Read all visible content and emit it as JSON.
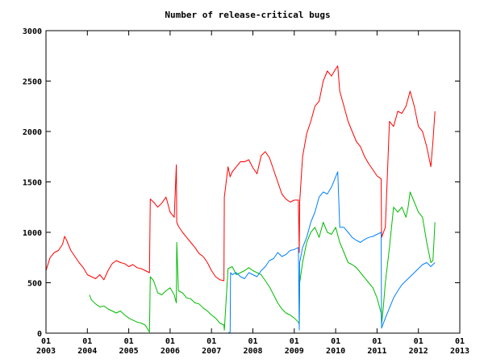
{
  "chart_data": {
    "type": "line",
    "title": "Number of release-critical bugs",
    "xlabel": "",
    "ylabel": "",
    "xlim": [
      2003.0,
      2013.0
    ],
    "ylim": [
      0,
      3000
    ],
    "grid": false,
    "legend": "none",
    "y_ticks": [
      {
        "value": 0,
        "label": "0"
      },
      {
        "value": 500,
        "label": "500"
      },
      {
        "value": 1000,
        "label": "1000"
      },
      {
        "value": 1500,
        "label": "1500"
      },
      {
        "value": 2000,
        "label": "2000"
      },
      {
        "value": 2500,
        "label": "2500"
      },
      {
        "value": 3000,
        "label": "3000"
      }
    ],
    "x_ticks": [
      {
        "value": 2003,
        "line1": "01",
        "line2": "2003"
      },
      {
        "value": 2004,
        "line1": "01",
        "line2": "2004"
      },
      {
        "value": 2005,
        "line1": "01",
        "line2": "2005"
      },
      {
        "value": 2006,
        "line1": "01",
        "line2": "2006"
      },
      {
        "value": 2007,
        "line1": "01",
        "line2": "2007"
      },
      {
        "value": 2008,
        "line1": "01",
        "line2": "2008"
      },
      {
        "value": 2009,
        "line1": "01",
        "line2": "2009"
      },
      {
        "value": 2010,
        "line1": "01",
        "line2": "2010"
      },
      {
        "value": 2011,
        "line1": "01",
        "line2": "2011"
      },
      {
        "value": 2012,
        "line1": "01",
        "line2": "2012"
      },
      {
        "value": 2013,
        "line1": "01",
        "line2": "2013"
      }
    ],
    "series": [
      {
        "color": "#ff0000",
        "x": [
          2003.0,
          2003.1,
          2003.2,
          2003.3,
          2003.4,
          2003.45,
          2003.5,
          2003.6,
          2003.7,
          2003.8,
          2003.9,
          2004.0,
          2004.1,
          2004.2,
          2004.3,
          2004.4,
          2004.5,
          2004.6,
          2004.7,
          2004.8,
          2004.9,
          2005.0,
          2005.1,
          2005.2,
          2005.3,
          2005.4,
          2005.5,
          2005.52,
          2005.6,
          2005.7,
          2005.8,
          2005.9,
          2006.0,
          2006.1,
          2006.15,
          2006.16,
          2006.2,
          2006.3,
          2006.4,
          2006.5,
          2006.6,
          2006.7,
          2006.8,
          2006.9,
          2007.0,
          2007.1,
          2007.2,
          2007.3,
          2007.31,
          2007.4,
          2007.45,
          2007.5,
          2007.6,
          2007.7,
          2007.8,
          2007.9,
          2008.0,
          2008.1,
          2008.2,
          2008.3,
          2008.4,
          2008.5,
          2008.6,
          2008.7,
          2008.8,
          2008.9,
          2009.0,
          2009.1,
          2009.12,
          2009.13,
          2009.2,
          2009.3,
          2009.4,
          2009.5,
          2009.6,
          2009.7,
          2009.8,
          2009.9,
          2010.0,
          2010.05,
          2010.1,
          2010.2,
          2010.3,
          2010.4,
          2010.5,
          2010.6,
          2010.7,
          2010.8,
          2010.9,
          2011.0,
          2011.1,
          2011.11,
          2011.2,
          2011.3,
          2011.4,
          2011.5,
          2011.6,
          2011.7,
          2011.8,
          2011.9,
          2012.0,
          2012.1,
          2012.2,
          2012.3,
          2012.35,
          2012.4
        ],
        "y": [
          620,
          750,
          800,
          820,
          880,
          960,
          920,
          820,
          760,
          700,
          650,
          580,
          560,
          540,
          580,
          530,
          620,
          690,
          720,
          700,
          690,
          660,
          680,
          650,
          640,
          620,
          600,
          1330,
          1300,
          1250,
          1290,
          1350,
          1200,
          1150,
          1670,
          1100,
          1060,
          1000,
          950,
          900,
          850,
          790,
          760,
          700,
          620,
          560,
          530,
          520,
          1350,
          1650,
          1550,
          1600,
          1650,
          1700,
          1700,
          1720,
          1640,
          1580,
          1760,
          1800,
          1740,
          1620,
          1500,
          1380,
          1330,
          1300,
          1320,
          1320,
          800,
          1300,
          1750,
          1980,
          2100,
          2250,
          2300,
          2500,
          2600,
          2550,
          2620,
          2650,
          2400,
          2250,
          2100,
          2000,
          1900,
          1850,
          1750,
          1680,
          1620,
          1560,
          1530,
          950,
          1050,
          2100,
          2050,
          2200,
          2180,
          2250,
          2400,
          2250,
          2050,
          2000,
          1850,
          1650,
          1900,
          2200
        ]
      },
      {
        "color": "#00bb00",
        "x": [
          2004.05,
          2004.1,
          2004.2,
          2004.3,
          2004.4,
          2004.5,
          2004.6,
          2004.7,
          2004.8,
          2004.9,
          2005.0,
          2005.1,
          2005.2,
          2005.3,
          2005.4,
          2005.5,
          2005.52,
          2005.6,
          2005.7,
          2005.8,
          2005.9,
          2006.0,
          2006.1,
          2006.15,
          2006.16,
          2006.2,
          2006.3,
          2006.4,
          2006.5,
          2006.6,
          2006.7,
          2006.8,
          2006.9,
          2007.0,
          2007.1,
          2007.2,
          2007.3,
          2007.31,
          2007.4,
          2007.5,
          2007.6,
          2007.7,
          2007.8,
          2007.9,
          2008.0,
          2008.1,
          2008.2,
          2008.3,
          2008.4,
          2008.5,
          2008.6,
          2008.7,
          2008.8,
          2008.9,
          2009.0,
          2009.1,
          2009.12,
          2009.13,
          2009.2,
          2009.3,
          2009.4,
          2009.5,
          2009.6,
          2009.7,
          2009.8,
          2009.9,
          2010.0,
          2010.1,
          2010.2,
          2010.3,
          2010.4,
          2010.5,
          2010.6,
          2010.7,
          2010.8,
          2010.9,
          2011.0,
          2011.1,
          2011.11,
          2011.15,
          2011.2,
          2011.3,
          2011.4,
          2011.5,
          2011.6,
          2011.7,
          2011.75,
          2011.8,
          2011.9,
          2012.0,
          2012.1,
          2012.2,
          2012.3,
          2012.35,
          2012.4
        ],
        "y": [
          380,
          330,
          290,
          260,
          270,
          240,
          220,
          200,
          220,
          180,
          150,
          130,
          110,
          100,
          80,
          10,
          560,
          520,
          400,
          380,
          420,
          450,
          380,
          300,
          900,
          420,
          400,
          350,
          340,
          300,
          290,
          250,
          220,
          180,
          150,
          100,
          80,
          30,
          640,
          660,
          580,
          600,
          620,
          650,
          620,
          600,
          580,
          520,
          460,
          380,
          300,
          240,
          200,
          180,
          150,
          110,
          90,
          500,
          700,
          900,
          1000,
          1050,
          950,
          1100,
          1000,
          980,
          1050,
          900,
          800,
          700,
          680,
          650,
          600,
          550,
          500,
          450,
          350,
          200,
          80,
          250,
          500,
          850,
          1250,
          1200,
          1250,
          1150,
          1250,
          1400,
          1300,
          1200,
          1150,
          900,
          700,
          720,
          1100
        ]
      },
      {
        "color": "#0080ff",
        "x": [
          2007.35,
          2007.4,
          2007.45,
          2007.46,
          2007.5,
          2007.6,
          2007.7,
          2007.8,
          2007.9,
          2008.0,
          2008.1,
          2008.2,
          2008.3,
          2008.4,
          2008.5,
          2008.6,
          2008.7,
          2008.8,
          2008.9,
          2009.0,
          2009.1,
          2009.12,
          2009.13,
          2009.2,
          2009.3,
          2009.4,
          2009.5,
          2009.6,
          2009.7,
          2009.8,
          2009.9,
          2010.0,
          2010.05,
          2010.1,
          2010.2,
          2010.3,
          2010.4,
          2010.5,
          2010.6,
          2010.7,
          2010.8,
          2010.9,
          2011.0,
          2011.1,
          2011.11,
          2011.2,
          2011.3,
          2011.4,
          2011.5,
          2011.6,
          2011.7,
          2011.8,
          2011.9,
          2012.0,
          2012.1,
          2012.2,
          2012.3,
          2012.4
        ],
        "y": [
          0,
          0,
          10,
          600,
          580,
          600,
          560,
          540,
          600,
          580,
          560,
          620,
          660,
          720,
          740,
          800,
          760,
          780,
          820,
          830,
          850,
          30,
          700,
          850,
          950,
          1100,
          1200,
          1350,
          1400,
          1380,
          1450,
          1550,
          1600,
          1050,
          1050,
          1000,
          950,
          920,
          900,
          930,
          950,
          960,
          980,
          1000,
          50,
          150,
          250,
          350,
          420,
          480,
          520,
          560,
          600,
          640,
          680,
          700,
          660,
          700
        ]
      }
    ]
  }
}
